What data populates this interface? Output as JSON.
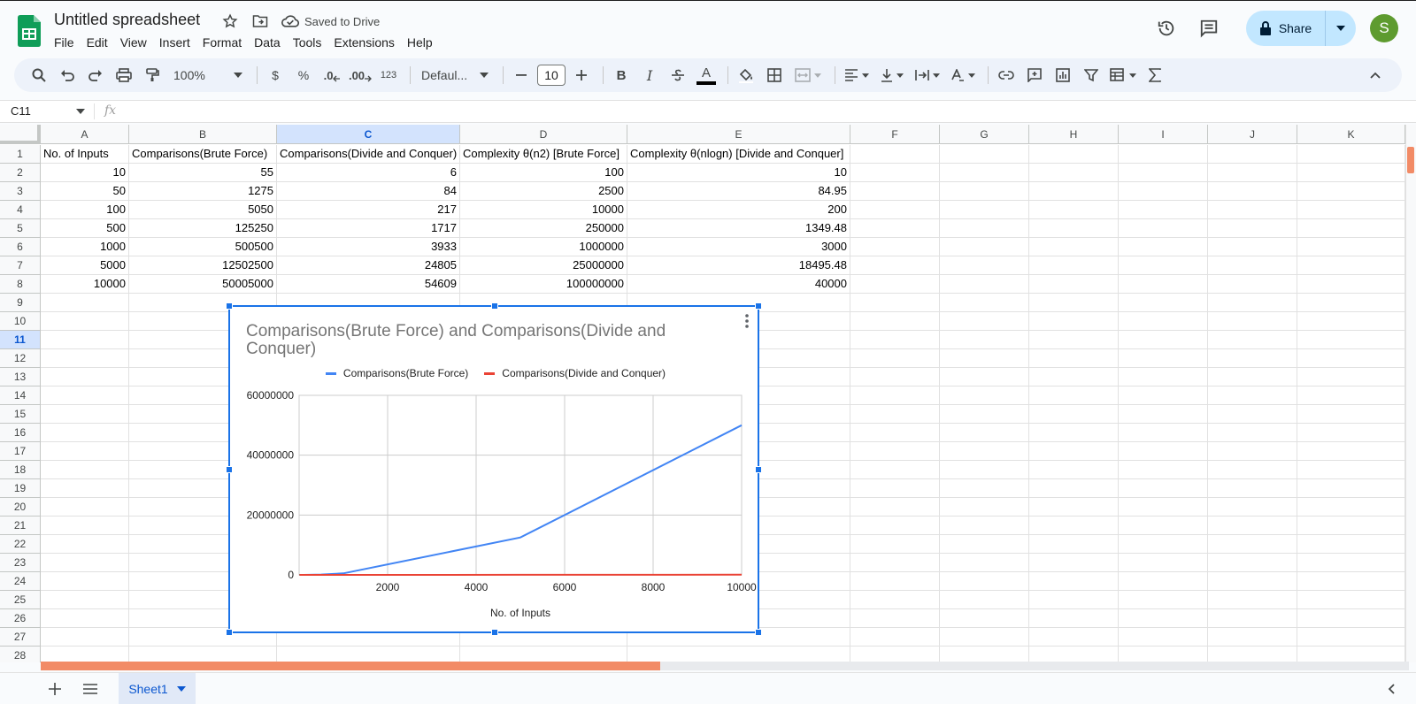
{
  "doc": {
    "title": "Untitled spreadsheet",
    "saved_status": "Saved to Drive"
  },
  "menu": [
    "File",
    "Edit",
    "View",
    "Insert",
    "Format",
    "Data",
    "Tools",
    "Extensions",
    "Help"
  ],
  "share": {
    "label": "Share"
  },
  "user": {
    "avatar_initial": "S"
  },
  "toolbar": {
    "zoom": "100%",
    "currency": "$",
    "percent": "%",
    "dec_decrease": ".0",
    "dec_increase": ".00",
    "more_formats": "123",
    "font": "Defaul...",
    "font_size": "10",
    "bold": "B",
    "italic": "I",
    "text_color": "A"
  },
  "formula_bar": {
    "name_box": "C11",
    "fx": "fx",
    "value": ""
  },
  "columns": [
    "A",
    "B",
    "C",
    "D",
    "E",
    "F",
    "G",
    "H",
    "I",
    "J",
    "K"
  ],
  "selected_column": "C",
  "selected_row": "11",
  "rows": [
    "1",
    "2",
    "3",
    "4",
    "5",
    "6",
    "7",
    "8",
    "9",
    "10",
    "11",
    "12",
    "13",
    "14",
    "15",
    "16",
    "17",
    "18",
    "19",
    "20",
    "21",
    "22",
    "23",
    "24",
    "25",
    "26",
    "27",
    "28"
  ],
  "table": {
    "headers": [
      "No. of Inputs",
      "Comparisons(Brute Force)",
      "Comparisons(Divide and Conquer)",
      "Complexity θ(n2) [Brute Force]",
      "Complexity θ(nlogn) [Divide and Conquer]"
    ],
    "data": [
      [
        "10",
        "55",
        "6",
        "100",
        "10"
      ],
      [
        "50",
        "1275",
        "84",
        "2500",
        "84.95"
      ],
      [
        "100",
        "5050",
        "217",
        "10000",
        "200"
      ],
      [
        "500",
        "125250",
        "1717",
        "250000",
        "1349.48"
      ],
      [
        "1000",
        "500500",
        "3933",
        "1000000",
        "3000"
      ],
      [
        "5000",
        "12502500",
        "24805",
        "25000000",
        "18495.48"
      ],
      [
        "10000",
        "50005000",
        "54609",
        "100000000",
        "40000"
      ]
    ]
  },
  "chart_data": {
    "type": "line",
    "title": "Comparisons(Brute Force) and Comparisons(Divide and Conquer)",
    "xlabel": "No. of Inputs",
    "ylabel": "",
    "x": [
      10,
      50,
      100,
      500,
      1000,
      5000,
      10000
    ],
    "series": [
      {
        "name": "Comparisons(Brute Force)",
        "values": [
          55,
          1275,
          5050,
          125250,
          500500,
          12502500,
          50005000
        ],
        "color": "#4285f4"
      },
      {
        "name": "Comparisons(Divide and Conquer)",
        "values": [
          6,
          84,
          217,
          1717,
          3933,
          24805,
          54609
        ],
        "color": "#ea4335"
      }
    ],
    "xlim": [
      0,
      10000
    ],
    "ylim": [
      0,
      60000000
    ],
    "xticks": [
      "2000",
      "4000",
      "6000",
      "8000",
      "10000"
    ],
    "yticks": [
      "0",
      "20000000",
      "40000000",
      "60000000"
    ],
    "legend": "top",
    "grid": true
  },
  "sheets": [
    {
      "name": "Sheet1"
    }
  ]
}
